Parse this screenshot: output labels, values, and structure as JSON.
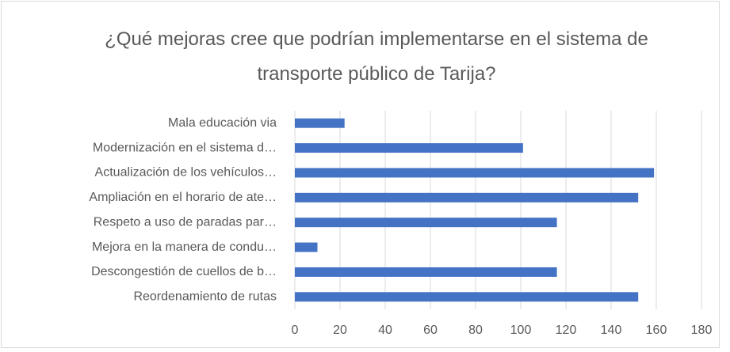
{
  "chart_data": {
    "type": "barh",
    "title": "¿Qué mejoras cree que podrían implementarse en el sistema de transporte público de Tarija?",
    "categories": [
      "Mala educación via",
      "Modernización en el sistema d…",
      "Actualización de los vehículos…",
      "Ampliación en el horario de ate…",
      "Respeto a uso de paradas par…",
      "Mejora en la manera de condu…",
      "Descongestión de cuellos de b…",
      "Reordenamiento de rutas"
    ],
    "values": [
      22,
      101,
      159,
      152,
      116,
      10,
      116,
      152
    ],
    "color": "#4472c4",
    "xlim": [
      0,
      180
    ],
    "xticks": [
      0,
      20,
      40,
      60,
      80,
      100,
      120,
      140,
      160,
      180
    ],
    "grid": true
  }
}
